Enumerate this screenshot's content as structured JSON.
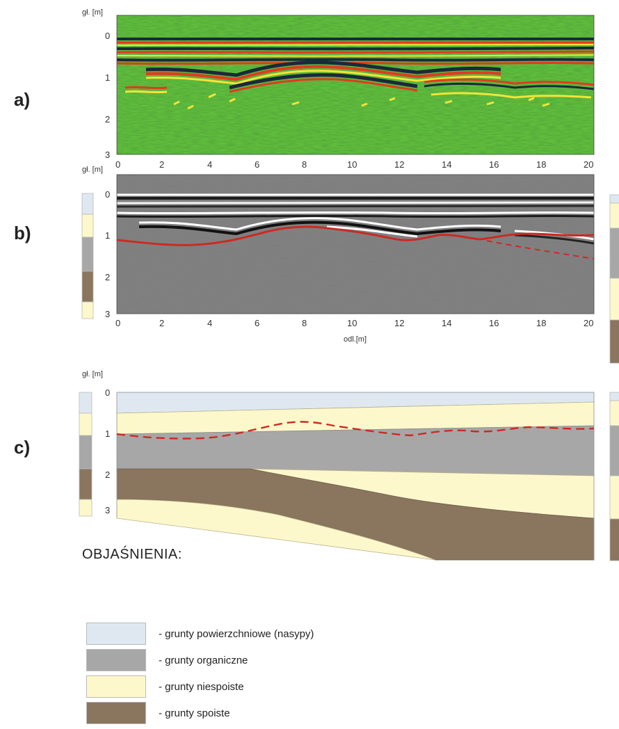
{
  "panels": {
    "a": {
      "label": "a)",
      "unit": "gł. [m]"
    },
    "b": {
      "label": "b)",
      "unit": "gł. [m]",
      "xlabel": "odl.[m]"
    },
    "c": {
      "label": "c)",
      "unit": "gł. [m]"
    }
  },
  "depth_ticks": [
    "0",
    "1",
    "2",
    "3"
  ],
  "distance_ticks": [
    "0",
    "2",
    "4",
    "6",
    "8",
    "10",
    "12",
    "14",
    "16",
    "18",
    "20"
  ],
  "legend": {
    "title": "OBJAŚNIENIA:",
    "items": [
      {
        "label": "- grunty powierzchniowe (nasypy)",
        "color": "#dfe8f0"
      },
      {
        "label": "- grunty organiczne",
        "color": "#a7a7a7"
      },
      {
        "label": "- grunty niespoiste",
        "color": "#fdf8cc"
      },
      {
        "label": "- grunty spoiste",
        "color": "#8a755e"
      }
    ]
  },
  "colors": {
    "radargram_a_background": "#5fbf3b",
    "radargram_b_background": "#808080",
    "interpreted_boundary": "#cc2a22"
  }
}
